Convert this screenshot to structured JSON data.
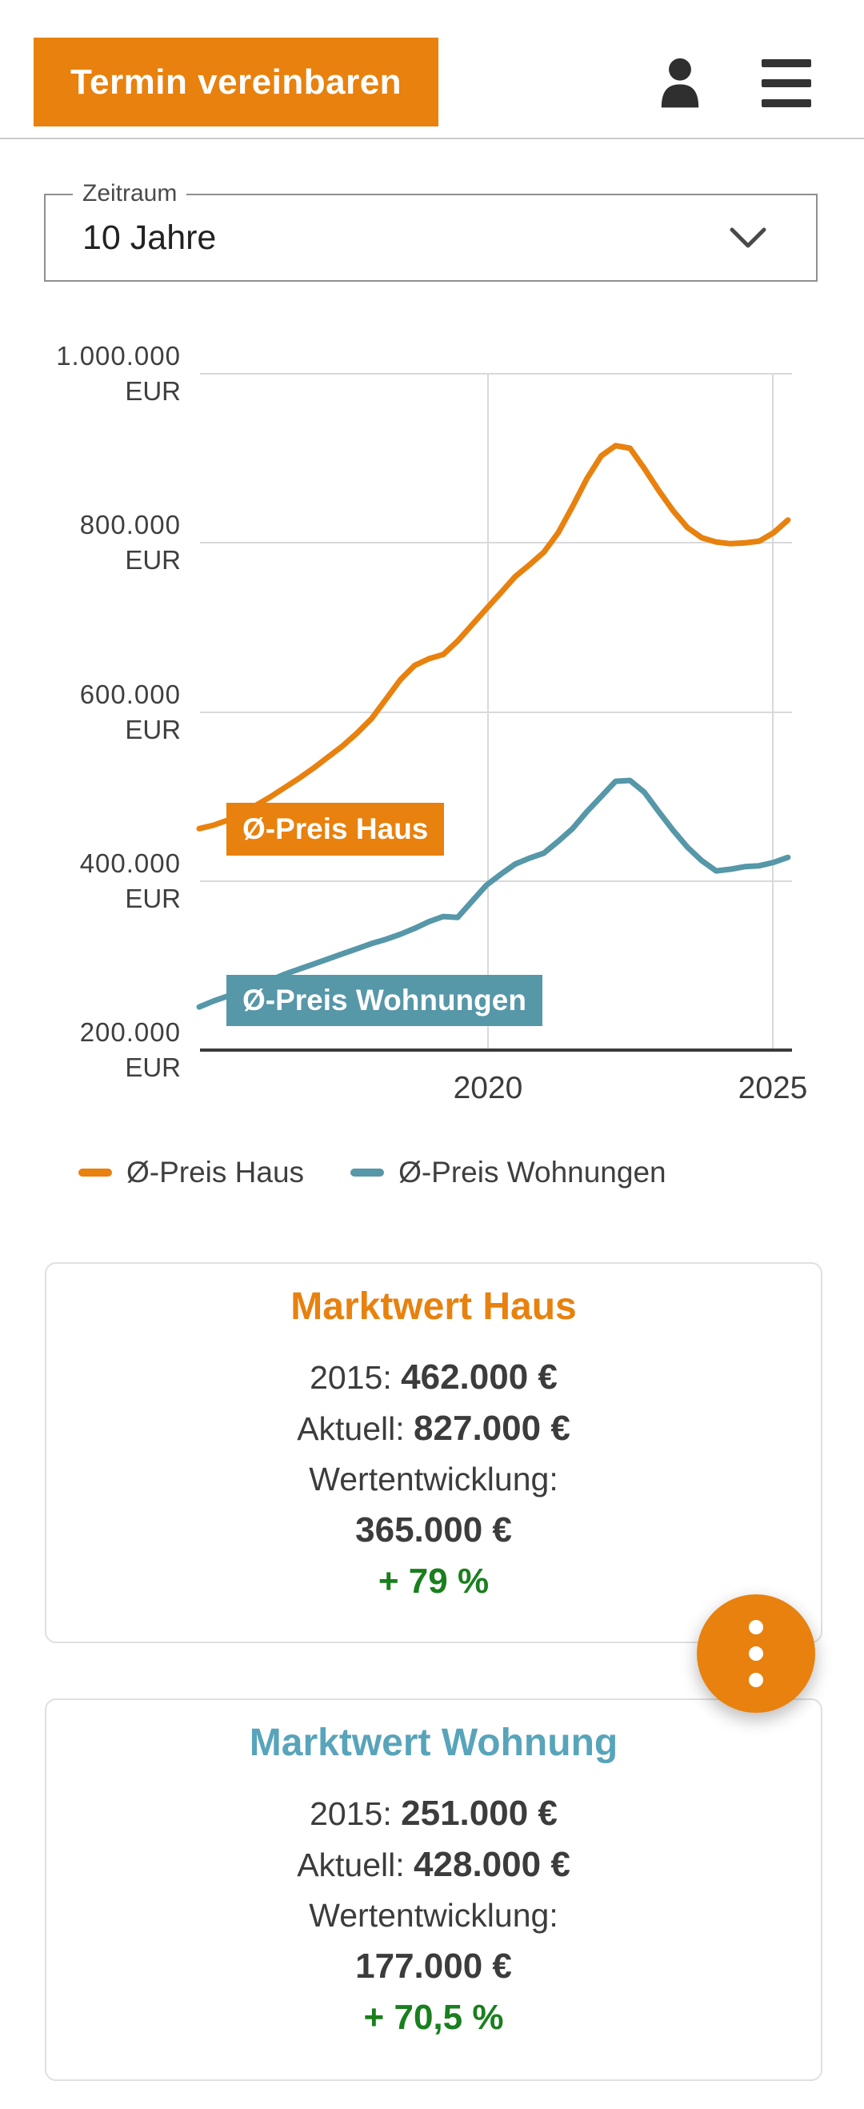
{
  "header": {
    "cta_button": "Termin vereinbaren"
  },
  "period_select": {
    "label": "Zeitraum",
    "value": "10 Jahre"
  },
  "chart_data": {
    "type": "line",
    "title": "",
    "xlabel": "",
    "ylabel": "EUR",
    "ylim": [
      200000,
      1000000
    ],
    "xlim": [
      2015,
      2025.3
    ],
    "grid": true,
    "legend_position": "bottom",
    "yticks": [
      {
        "value": "1.000.000",
        "unit": "EUR"
      },
      {
        "value": "800.000",
        "unit": "EUR"
      },
      {
        "value": "600.000",
        "unit": "EUR"
      },
      {
        "value": "400.000",
        "unit": "EUR"
      },
      {
        "value": "200.000",
        "unit": "EUR"
      }
    ],
    "xticks": [
      "2020",
      "2025"
    ],
    "x": [
      2015.0,
      2015.25,
      2015.5,
      2015.75,
      2016.0,
      2016.25,
      2016.5,
      2016.75,
      2017.0,
      2017.25,
      2017.5,
      2017.75,
      2018.0,
      2018.25,
      2018.5,
      2018.75,
      2019.0,
      2019.25,
      2019.5,
      2019.75,
      2020.0,
      2020.25,
      2020.5,
      2020.75,
      2021.0,
      2021.25,
      2021.5,
      2021.75,
      2022.0,
      2022.25,
      2022.5,
      2022.75,
      2023.0,
      2023.25,
      2023.5,
      2023.75,
      2024.0,
      2024.25,
      2024.5,
      2024.75,
      2025.0,
      2025.25
    ],
    "series": [
      {
        "name": "Ø-Preis Haus",
        "badge": "Ø-Preis Haus",
        "color": "#E8810E",
        "values": [
          462000,
          466000,
          472000,
          480000,
          490000,
          500000,
          511000,
          522000,
          534000,
          547000,
          560000,
          575000,
          592000,
          615000,
          638000,
          655000,
          663000,
          668000,
          684000,
          703000,
          722000,
          741000,
          760000,
          774000,
          789000,
          812000,
          843000,
          876000,
          903000,
          915000,
          912000,
          888000,
          862000,
          838000,
          818000,
          806000,
          801000,
          799000,
          800000,
          802000,
          812000,
          827000
        ]
      },
      {
        "name": "Ø-Preis Wohnungen",
        "badge": "Ø-Preis Wohnungen",
        "color": "#5697A8",
        "values": [
          251000,
          258000,
          264000,
          270000,
          276000,
          283000,
          290000,
          296000,
          302000,
          308000,
          314000,
          320000,
          326000,
          331000,
          337000,
          344000,
          352000,
          358000,
          357000,
          376000,
          395000,
          408000,
          420000,
          427000,
          433000,
          447000,
          462000,
          482000,
          500000,
          518000,
          519000,
          505000,
          482000,
          460000,
          440000,
          424000,
          412000,
          414000,
          417000,
          418000,
          422000,
          428000
        ]
      }
    ]
  },
  "cards": [
    {
      "title": "Marktwert Haus",
      "rows": [
        {
          "label": "2015:",
          "value": "462.000 €"
        },
        {
          "label": "Aktuell:",
          "value": "827.000 €"
        }
      ],
      "growth_label": "Wertentwicklung:",
      "growth_value": "365.000 €",
      "growth_percent": "+ 79 %"
    },
    {
      "title": "Marktwert Wohnung",
      "rows": [
        {
          "label": "2015:",
          "value": "251.000 €"
        },
        {
          "label": "Aktuell:",
          "value": "428.000 €"
        }
      ],
      "growth_label": "Wertentwicklung:",
      "growth_value": "177.000 €",
      "growth_percent": "+ 70,5 %"
    }
  ],
  "theme": {
    "orange": "#E8810E",
    "teal": "#5697A8",
    "teal_title": "#58A4BA",
    "green": "#1A7F1E",
    "text": "#3C3C3C",
    "gridline": "#D9D9D9",
    "axis": "#3B3B3B",
    "card_border": "#E0E0E0"
  }
}
